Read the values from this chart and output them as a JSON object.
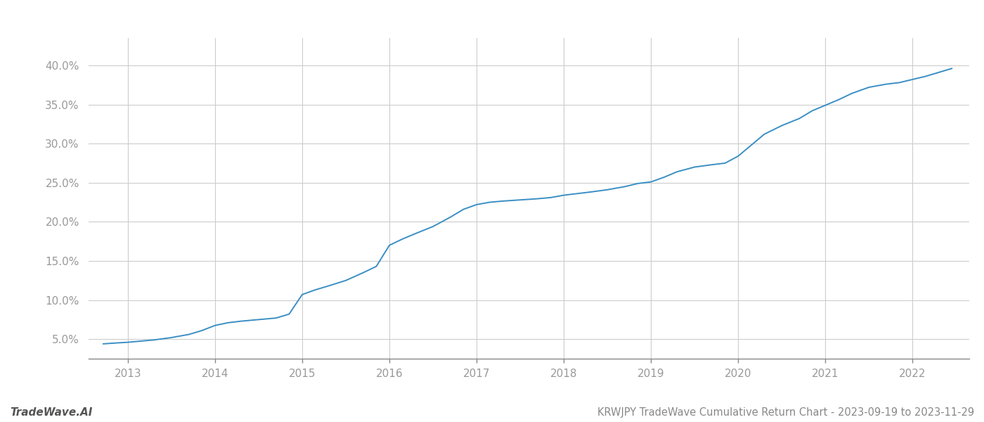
{
  "title": "KRWJPY TradeWave Cumulative Return Chart - 2023-09-19 to 2023-11-29",
  "watermark": "TradeWave.AI",
  "line_color": "#3a8fc4",
  "background_color": "#ffffff",
  "grid_color": "#cccccc",
  "x_years": [
    2013,
    2014,
    2015,
    2016,
    2017,
    2018,
    2019,
    2020,
    2021,
    2022
  ],
  "x_values": [
    2012.72,
    2012.85,
    2013.0,
    2013.15,
    2013.3,
    2013.5,
    2013.7,
    2013.85,
    2014.0,
    2014.15,
    2014.3,
    2014.5,
    2014.7,
    2014.85,
    2015.0,
    2015.15,
    2015.3,
    2015.5,
    2015.7,
    2015.85,
    2016.0,
    2016.15,
    2016.3,
    2016.5,
    2016.7,
    2016.85,
    2017.0,
    2017.15,
    2017.3,
    2017.5,
    2017.7,
    2017.85,
    2018.0,
    2018.15,
    2018.3,
    2018.5,
    2018.7,
    2018.85,
    2019.0,
    2019.15,
    2019.3,
    2019.5,
    2019.7,
    2019.85,
    2020.0,
    2020.15,
    2020.3,
    2020.5,
    2020.7,
    2020.85,
    2021.0,
    2021.15,
    2021.3,
    2021.5,
    2021.7,
    2021.85,
    2022.0,
    2022.15,
    2022.3,
    2022.45
  ],
  "y_values": [
    0.044,
    0.045,
    0.046,
    0.0475,
    0.049,
    0.052,
    0.056,
    0.061,
    0.0675,
    0.071,
    0.073,
    0.075,
    0.077,
    0.082,
    0.107,
    0.113,
    0.118,
    0.125,
    0.135,
    0.143,
    0.17,
    0.178,
    0.185,
    0.194,
    0.206,
    0.216,
    0.222,
    0.225,
    0.2265,
    0.228,
    0.2295,
    0.231,
    0.234,
    0.236,
    0.238,
    0.241,
    0.245,
    0.249,
    0.251,
    0.257,
    0.264,
    0.27,
    0.273,
    0.275,
    0.284,
    0.298,
    0.312,
    0.323,
    0.332,
    0.342,
    0.349,
    0.356,
    0.364,
    0.372,
    0.376,
    0.378,
    0.382,
    0.386,
    0.391,
    0.396
  ],
  "ylim": [
    0.025,
    0.435
  ],
  "xlim": [
    2012.55,
    2022.65
  ],
  "yticks": [
    0.05,
    0.1,
    0.15,
    0.2,
    0.25,
    0.3,
    0.35,
    0.4
  ],
  "ytick_labels": [
    "5.0%",
    "10.0%",
    "15.0%",
    "20.0%",
    "25.0%",
    "30.0%",
    "35.0%",
    "40.0%"
  ],
  "title_fontsize": 10.5,
  "watermark_fontsize": 11,
  "tick_fontsize": 11,
  "line_width": 1.4
}
